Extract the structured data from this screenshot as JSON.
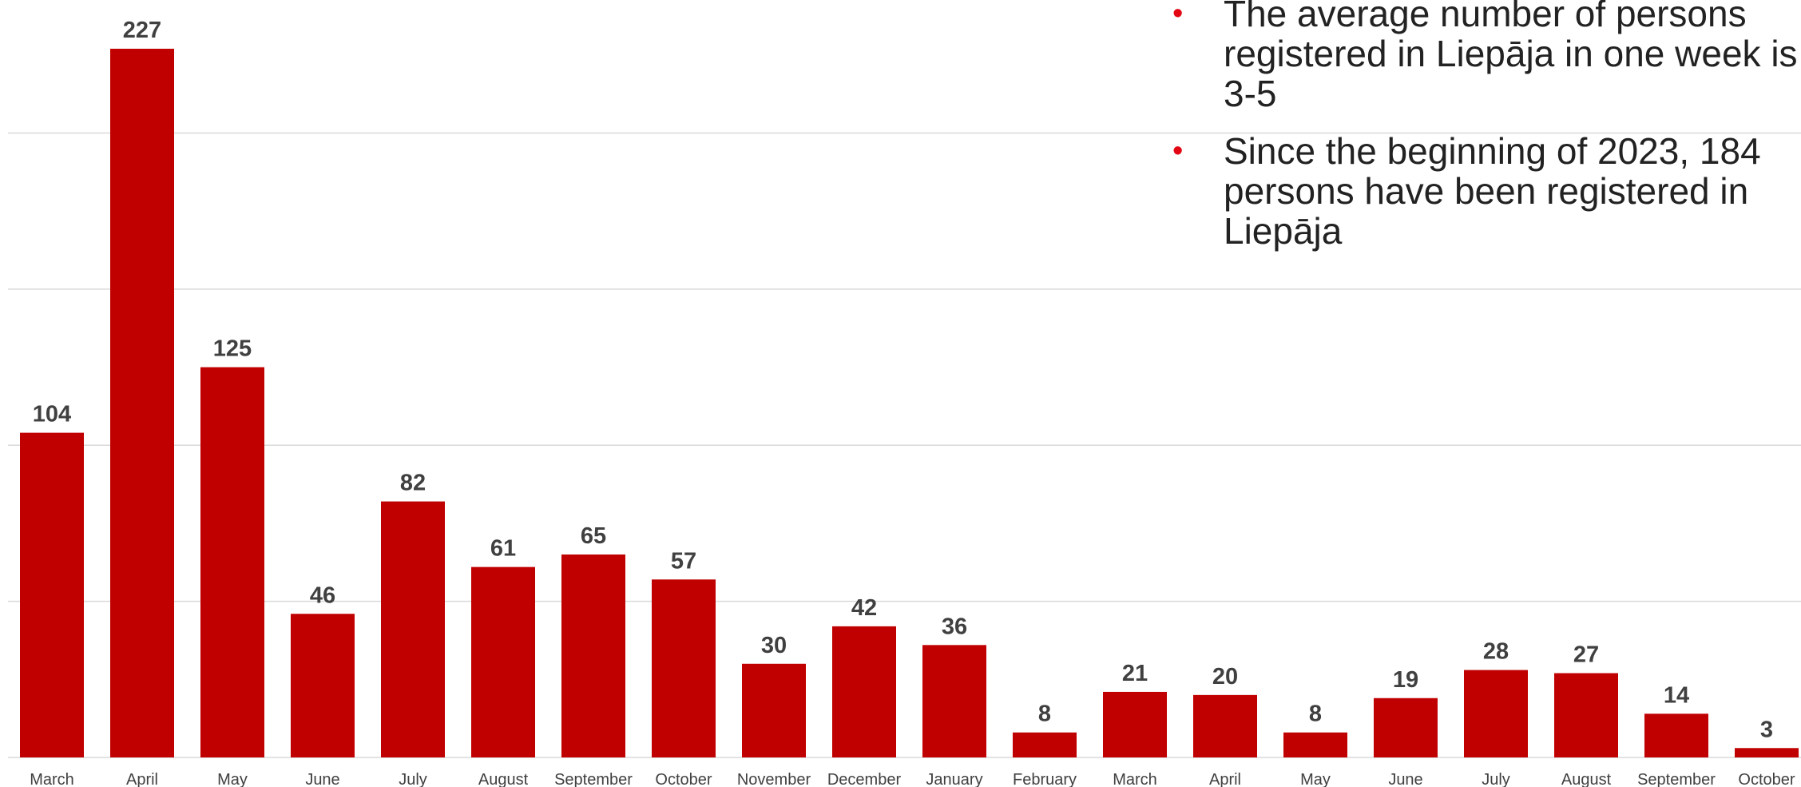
{
  "notes": [
    "The average number of persons registered in Liepāja in one week is 3-5",
    "Since the beginning of 2023, 184 persons have been registered in Liepāja"
  ],
  "colors": {
    "bar": "#c00000",
    "bullet": "#e30613",
    "label": "#404040",
    "grid": "#d9d9d9"
  },
  "chart_data": {
    "type": "bar",
    "categories": [
      "March",
      "April",
      "May",
      "June",
      "July",
      "August",
      "September",
      "October",
      "November",
      "December",
      "January",
      "February",
      "March",
      "April",
      "May",
      "June",
      "July",
      "August",
      "September",
      "October"
    ],
    "values": [
      104,
      227,
      125,
      46,
      82,
      61,
      65,
      57,
      30,
      42,
      36,
      8,
      21,
      20,
      8,
      19,
      28,
      27,
      14,
      3
    ],
    "title": "",
    "xlabel": "",
    "ylabel": "",
    "ylim": [
      0,
      250
    ],
    "grid": true,
    "data_labels": true,
    "legend": false
  }
}
